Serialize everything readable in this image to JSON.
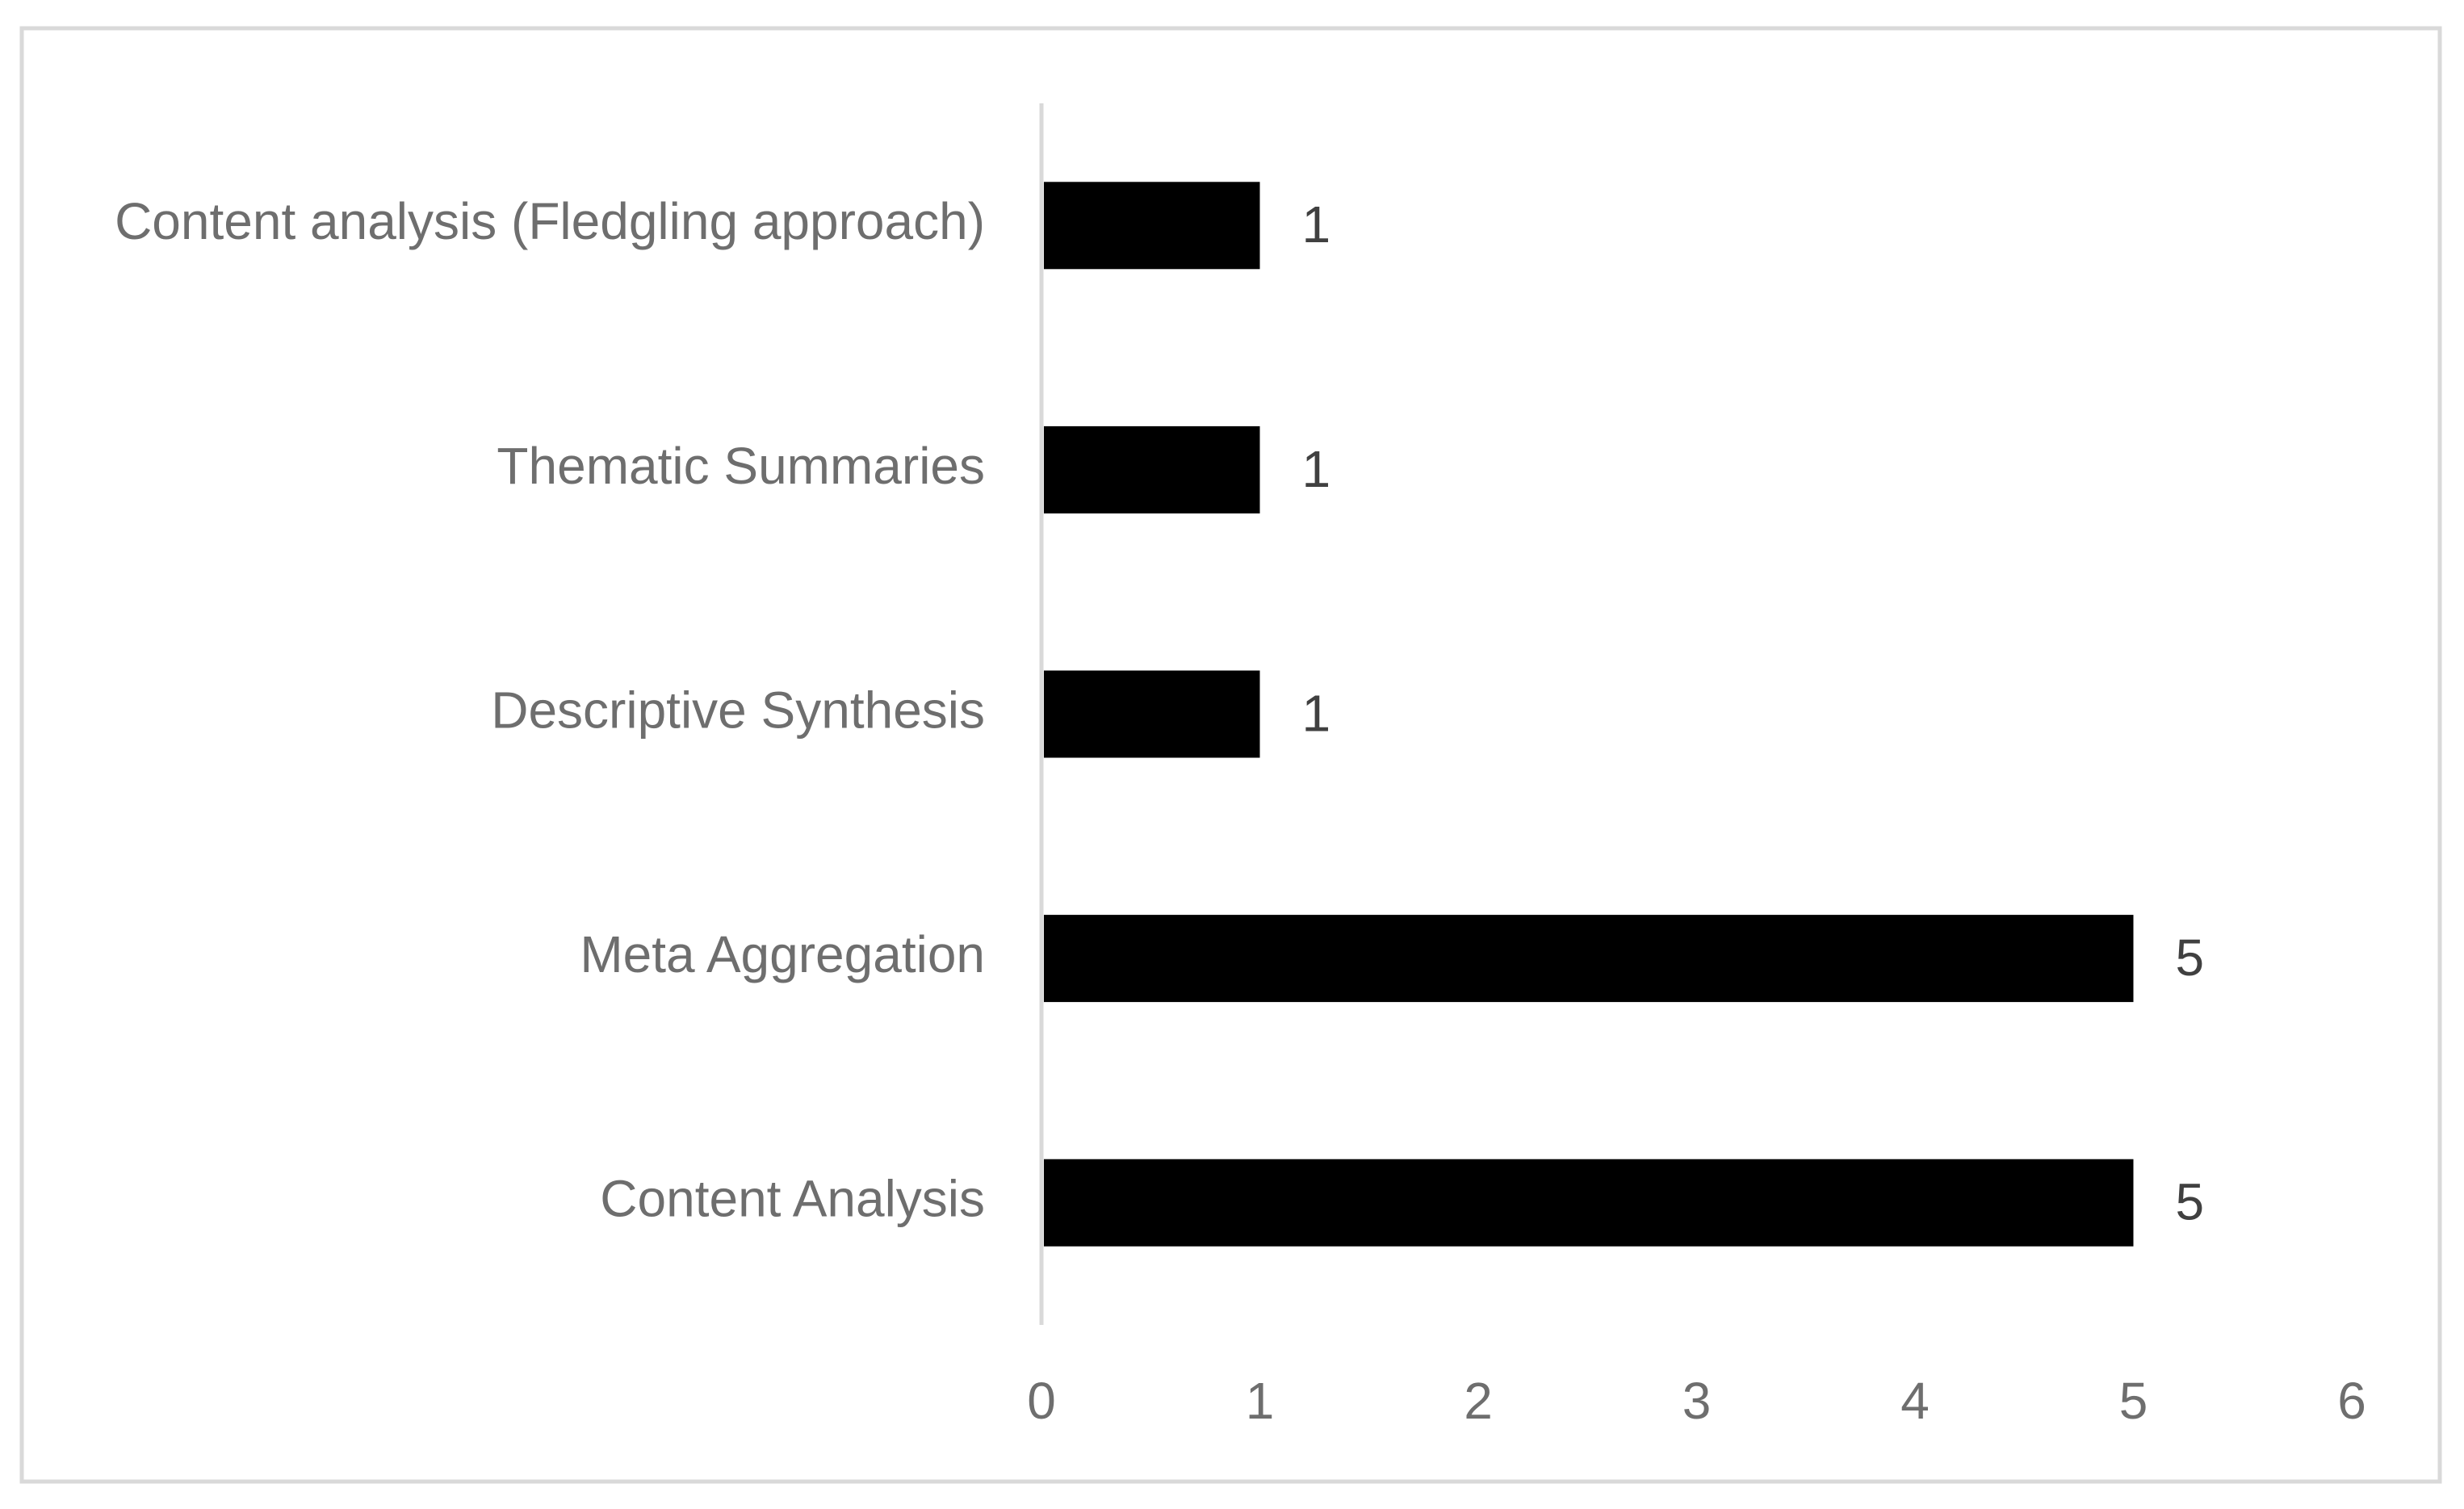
{
  "chart_data": {
    "type": "bar",
    "orientation": "horizontal",
    "categories": [
      "Content analysis (Fledgling approach)",
      "Thematic Summaries",
      "Descriptive Synthesis",
      "Meta Aggregation",
      "Content Analysis"
    ],
    "values": [
      1,
      1,
      1,
      5,
      5
    ],
    "color": "#000000",
    "xlim": [
      0,
      6
    ],
    "xticks": [
      0,
      1,
      2,
      3,
      4,
      5,
      6
    ],
    "grid": false
  }
}
